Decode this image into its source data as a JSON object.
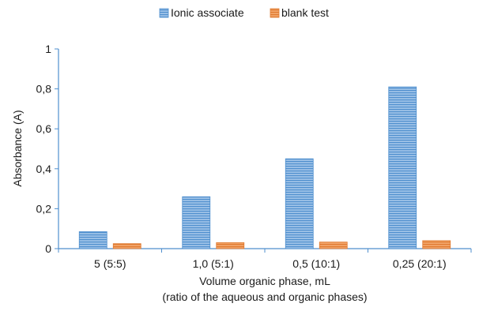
{
  "chart_data": {
    "type": "bar",
    "categories": [
      "5 (5:5)",
      "1,0 (5:1)",
      "0,5 (10:1)",
      "0,25 (20:1)"
    ],
    "series": [
      {
        "name": "Ionic associate",
        "values": [
          0.085,
          0.26,
          0.45,
          0.81
        ],
        "color": "#5b9bd5"
      },
      {
        "name": "blank test",
        "values": [
          0.025,
          0.03,
          0.033,
          0.04
        ],
        "color": "#ed7d31"
      }
    ],
    "xlabel": "Volume organic phase, mL",
    "xlabel_sub": "(ratio of the aqueous and organic phases)",
    "ylabel": "Absorbance (A)",
    "ylim": [
      0,
      1
    ],
    "yticks": [
      0,
      0.2,
      0.4,
      0.6,
      0.8,
      1
    ],
    "ytick_labels": [
      "0",
      "0,2",
      "0,4",
      "0,6",
      "0,8",
      "1"
    ],
    "grid": false,
    "legend_position": "top-center"
  }
}
